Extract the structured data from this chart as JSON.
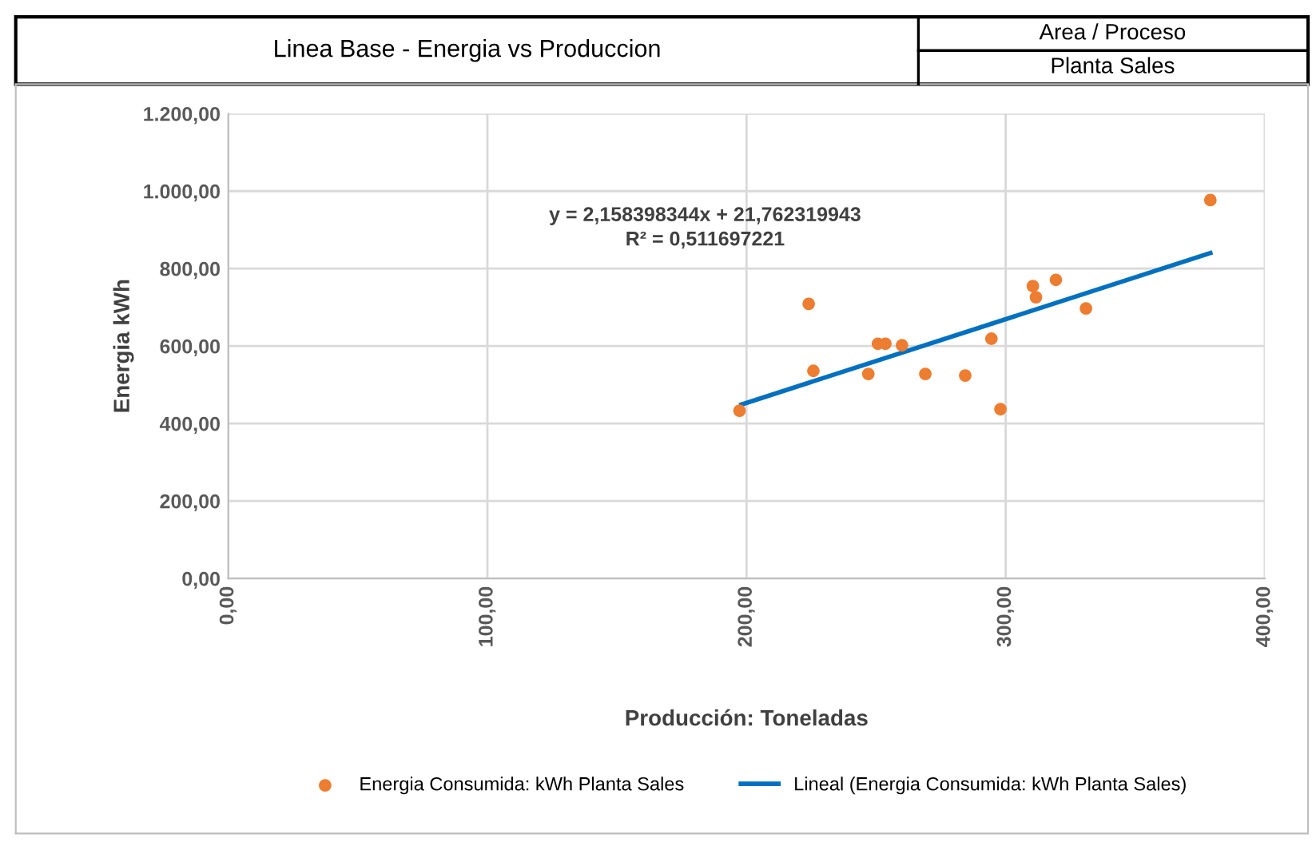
{
  "chart_data": {
    "type": "scatter",
    "title": "Linea Base - Energia vs Produccion",
    "annotations": [
      "Area / Proceso",
      "Planta Sales",
      "y = 2,158398344x + 21,762319943\nR² = 0,511697221"
    ],
    "xlabel": "Producción: Toneladas",
    "ylabel": "Energia kWh",
    "series": [
      {
        "name": "Energia Consumida: kWh Planta Sales",
        "color": "#ed7d31",
        "marker": "circle",
        "x": [
          197.3,
          224,
          225.8,
          247,
          250.7,
          253.6,
          260,
          269,
          284.4,
          294.5,
          298,
          310.5,
          311.7,
          319.4,
          331,
          379
        ],
        "values": [
          433,
          709,
          536,
          528,
          606,
          606,
          602,
          528,
          524,
          619,
          437,
          755,
          726,
          771,
          697,
          977
        ]
      },
      {
        "name": "Lineal (Energia Consumida: kWh Planta Sales)",
        "type": "line",
        "color": "#0070c0",
        "marker": "none",
        "line_style": "solid",
        "x": [
          198,
          379
        ],
        "values": [
          449,
          840
        ]
      }
    ],
    "xlim": [
      0,
      400
    ],
    "xticks": [
      {
        "value": 0,
        "label": "0,00"
      },
      {
        "value": 100,
        "label": "100,00"
      },
      {
        "value": 200,
        "label": "200,00"
      },
      {
        "value": 300,
        "label": "300,00"
      },
      {
        "value": 400,
        "label": "400,00"
      }
    ],
    "ylim": [
      0,
      1200
    ],
    "yticks": [
      {
        "value": 0,
        "label": "0,00"
      },
      {
        "value": 200,
        "label": "200,00"
      },
      {
        "value": 400,
        "label": "400,00"
      },
      {
        "value": 600,
        "label": "600,00"
      },
      {
        "value": 800,
        "label": "800,00"
      },
      {
        "value": 1000,
        "label": "1.000,00"
      },
      {
        "value": 1200,
        "label": "1.200,00"
      }
    ],
    "grid": true,
    "legend": "bottom"
  }
}
